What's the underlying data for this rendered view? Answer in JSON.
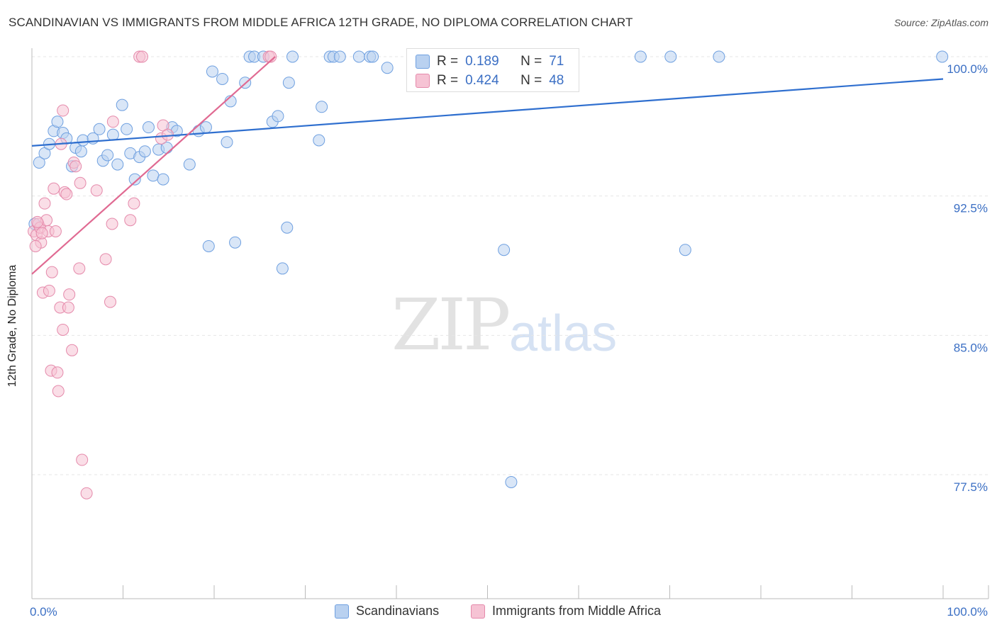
{
  "title": "SCANDINAVIAN VS IMMIGRANTS FROM MIDDLE AFRICA 12TH GRADE, NO DIPLOMA CORRELATION CHART",
  "source": "Source: ZipAtlas.com",
  "watermark": {
    "zip": "ZIP",
    "atlas": "atlas"
  },
  "colors": {
    "blue": "#6fa0e0",
    "blue_fill": "#b9d1f0",
    "blue_line": "#2f6fcf",
    "pink": "#e58aab",
    "pink_fill": "#f6c3d4",
    "pink_line": "#e06a92",
    "axis_text": "#3b6fc4"
  },
  "stats": [
    {
      "r_label": "R =",
      "r": "0.189",
      "n_label": "N =",
      "n": "71",
      "color": "blue"
    },
    {
      "r_label": "R =",
      "r": "0.424",
      "n_label": "N =",
      "n": "48",
      "color": "pink"
    }
  ],
  "legend": [
    {
      "label": "Scandinavians",
      "color": "blue"
    },
    {
      "label": "Immigrants from Middle Africa",
      "color": "pink"
    }
  ],
  "chart_data": {
    "type": "scatter",
    "title": "SCANDINAVIAN VS IMMIGRANTS FROM MIDDLE AFRICA 12TH GRADE, NO DIPLOMA CORRELATION CHART",
    "xlabel": "",
    "ylabel": "12th Grade, No Diploma",
    "xlim": [
      0,
      100
    ],
    "ylim": [
      70.0,
      101.5
    ],
    "x_tick_labels": [
      "0.0%",
      "100.0%"
    ],
    "y_ticks": [
      77.5,
      85.0,
      92.5,
      100.0
    ],
    "y_tick_labels": [
      "77.5%",
      "85.0%",
      "92.5%",
      "100.0%"
    ],
    "grid": true,
    "legend_position": "bottom",
    "series": [
      {
        "name": "Scandinavians",
        "color": "blue",
        "trend": {
          "x": [
            0,
            100
          ],
          "y": [
            95.2,
            98.8
          ]
        },
        "points": [
          [
            0.3,
            91.0
          ],
          [
            0.8,
            94.3
          ],
          [
            1.4,
            94.8
          ],
          [
            1.9,
            95.3
          ],
          [
            2.4,
            96.0
          ],
          [
            2.8,
            96.5
          ],
          [
            3.4,
            95.9
          ],
          [
            3.8,
            95.6
          ],
          [
            4.4,
            94.1
          ],
          [
            4.8,
            95.1
          ],
          [
            5.4,
            94.9
          ],
          [
            5.6,
            95.5
          ],
          [
            6.7,
            95.6
          ],
          [
            7.4,
            96.1
          ],
          [
            7.8,
            94.4
          ],
          [
            8.3,
            94.7
          ],
          [
            8.9,
            95.8
          ],
          [
            9.4,
            94.2
          ],
          [
            9.9,
            97.4
          ],
          [
            10.4,
            96.1
          ],
          [
            10.8,
            94.8
          ],
          [
            11.3,
            93.4
          ],
          [
            11.8,
            94.6
          ],
          [
            12.4,
            94.9
          ],
          [
            12.8,
            96.2
          ],
          [
            13.3,
            93.6
          ],
          [
            13.9,
            95.0
          ],
          [
            14.4,
            93.4
          ],
          [
            14.8,
            95.1
          ],
          [
            15.4,
            96.2
          ],
          [
            15.9,
            96.0
          ],
          [
            17.3,
            94.2
          ],
          [
            18.3,
            96.0
          ],
          [
            19.1,
            96.2
          ],
          [
            19.4,
            89.8
          ],
          [
            19.8,
            99.2
          ],
          [
            20.9,
            98.8
          ],
          [
            21.4,
            95.4
          ],
          [
            21.8,
            97.6
          ],
          [
            22.3,
            90.0
          ],
          [
            23.4,
            98.6
          ],
          [
            23.9,
            100.0
          ],
          [
            24.4,
            100.0
          ],
          [
            25.4,
            100.0
          ],
          [
            26.4,
            96.5
          ],
          [
            27.0,
            96.8
          ],
          [
            27.5,
            88.6
          ],
          [
            28.0,
            90.8
          ],
          [
            28.2,
            98.6
          ],
          [
            28.6,
            100.0
          ],
          [
            31.5,
            95.5
          ],
          [
            31.8,
            97.3
          ],
          [
            32.7,
            100.0
          ],
          [
            33.1,
            100.0
          ],
          [
            33.8,
            100.0
          ],
          [
            35.9,
            100.0
          ],
          [
            37.1,
            100.0
          ],
          [
            37.4,
            100.0
          ],
          [
            39.0,
            99.4
          ],
          [
            42.6,
            100.0
          ],
          [
            42.9,
            100.0
          ],
          [
            44.1,
            100.0
          ],
          [
            45.3,
            100.0
          ],
          [
            46.4,
            100.0
          ],
          [
            51.8,
            89.6
          ],
          [
            52.6,
            77.1
          ],
          [
            66.8,
            100.0
          ],
          [
            70.1,
            100.0
          ],
          [
            71.7,
            89.6
          ],
          [
            75.4,
            100.0
          ],
          [
            99.9,
            100.0
          ]
        ]
      },
      {
        "name": "Immigrants from Middle Africa",
        "color": "pink",
        "trend": {
          "x": [
            0,
            26.7
          ],
          "y": [
            88.3,
            100.0
          ]
        },
        "points": [
          [
            0.2,
            90.6
          ],
          [
            0.5,
            90.4
          ],
          [
            0.7,
            91.0
          ],
          [
            0.9,
            90.8
          ],
          [
            1.0,
            90.0
          ],
          [
            1.2,
            87.3
          ],
          [
            1.4,
            92.1
          ],
          [
            1.6,
            91.2
          ],
          [
            1.8,
            90.6
          ],
          [
            1.9,
            87.4
          ],
          [
            2.1,
            83.1
          ],
          [
            2.2,
            88.4
          ],
          [
            2.4,
            92.9
          ],
          [
            2.6,
            90.6
          ],
          [
            2.8,
            83.0
          ],
          [
            2.9,
            82.0
          ],
          [
            3.1,
            86.5
          ],
          [
            3.2,
            95.3
          ],
          [
            3.4,
            97.1
          ],
          [
            3.4,
            85.3
          ],
          [
            3.6,
            92.7
          ],
          [
            3.8,
            92.6
          ],
          [
            4.0,
            86.5
          ],
          [
            4.1,
            87.2
          ],
          [
            4.4,
            84.2
          ],
          [
            4.6,
            94.3
          ],
          [
            4.8,
            94.1
          ],
          [
            5.2,
            88.6
          ],
          [
            5.3,
            93.2
          ],
          [
            5.5,
            78.3
          ],
          [
            6.0,
            76.5
          ],
          [
            7.1,
            92.8
          ],
          [
            8.1,
            89.1
          ],
          [
            8.6,
            86.8
          ],
          [
            8.8,
            91.0
          ],
          [
            8.9,
            96.5
          ],
          [
            10.8,
            91.2
          ],
          [
            11.2,
            92.1
          ],
          [
            11.8,
            100.0
          ],
          [
            12.1,
            100.0
          ],
          [
            14.2,
            95.6
          ],
          [
            14.4,
            96.3
          ],
          [
            14.9,
            95.8
          ],
          [
            26.0,
            100.0
          ],
          [
            26.2,
            100.0
          ],
          [
            0.4,
            89.8
          ],
          [
            0.6,
            91.1
          ],
          [
            1.1,
            90.5
          ]
        ]
      }
    ]
  }
}
